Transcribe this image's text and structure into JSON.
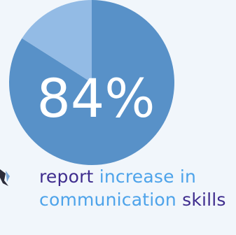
{
  "colors": {
    "background": "#f1f6fb",
    "major_slice": "#5891c8",
    "minor_slice": "#93bbe5",
    "label": "#ffffff",
    "caption_emphasis": "#3f2d8e",
    "caption_text": "#4da3ea"
  },
  "chart_data": {
    "type": "pie",
    "values": [
      84,
      16
    ],
    "center_label": "84%"
  },
  "caption": {
    "word1": "report",
    "phrase2": "increase in communication",
    "word3": "skills"
  }
}
